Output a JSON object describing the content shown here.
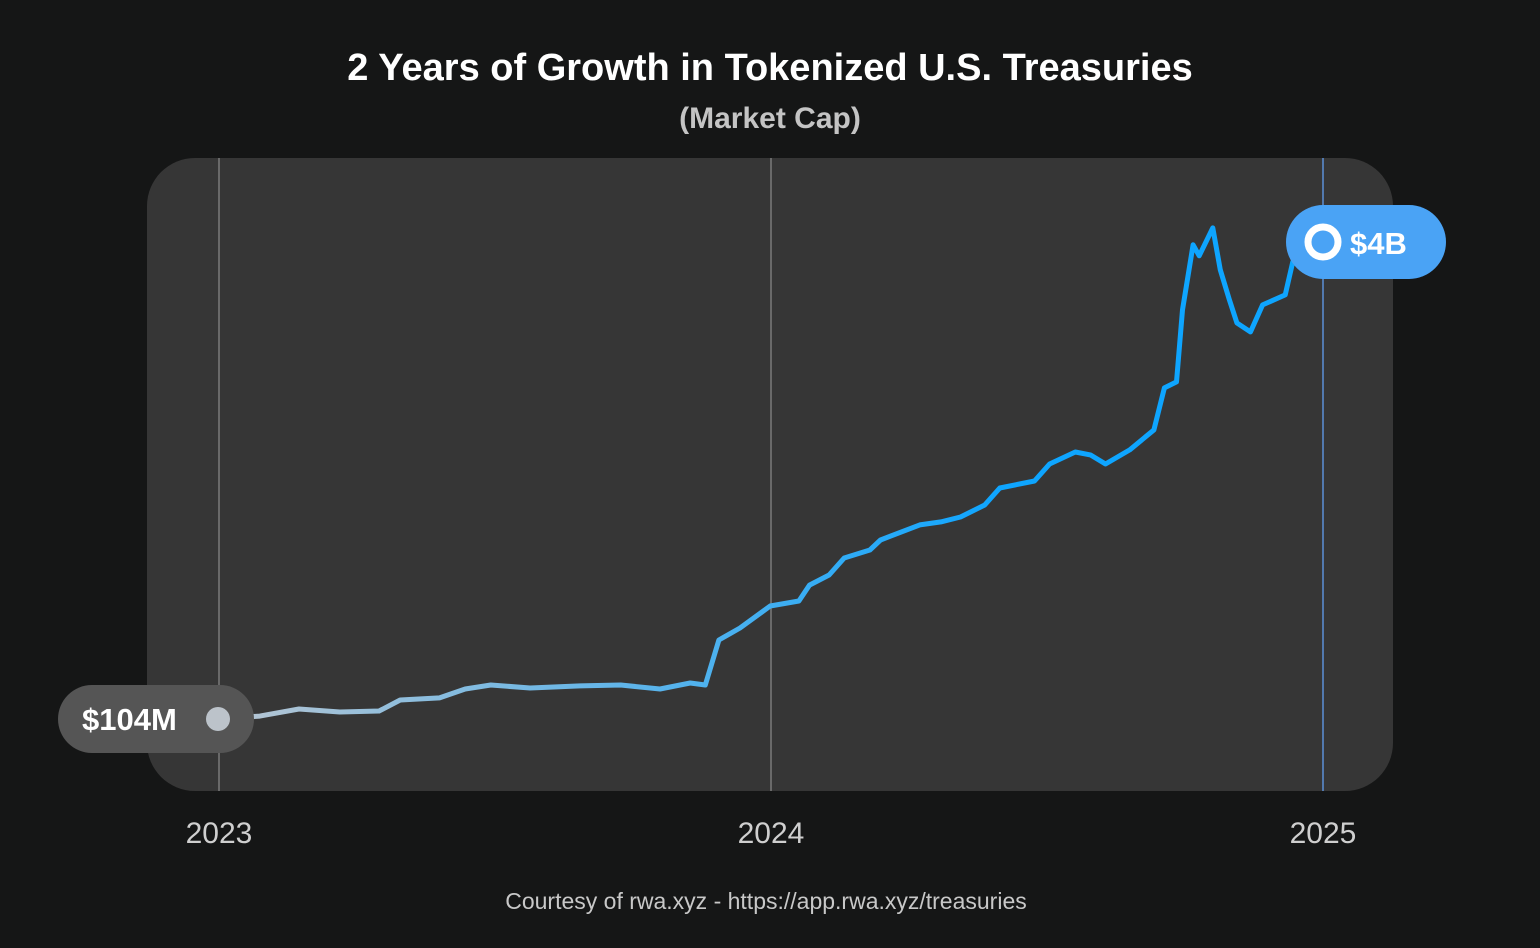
{
  "chart_data": {
    "type": "line",
    "title": "2 Years of Growth in Tokenized U.S. Treasuries",
    "subtitle": "(Market Cap)",
    "xlabel": "",
    "ylabel": "",
    "x_ticks": [
      "2023",
      "2024",
      "2025"
    ],
    "xlim": [
      "2023-01-01",
      "2025-01-01"
    ],
    "y_unit": "USD millions",
    "ylim": [
      0,
      4500
    ],
    "grid": "vertical lines at year ticks",
    "start_label": "$104M",
    "end_label": "$4B",
    "credit": "Courtesy of rwa.xyz -  https://app.rwa.xyz/treasuries",
    "colors": {
      "line_start": "#b9c6d2",
      "line_end": "#0ea5ff",
      "end_pill": "#4aa3f5",
      "start_pill": "#555555",
      "plot_bg": "#363636",
      "page_bg": "#151616"
    },
    "series": [
      {
        "x": [
          "2023-01-01",
          "2023-01-28",
          "2023-02-23",
          "2023-03-22",
          "2023-04-17",
          "2023-05-01",
          "2023-05-27",
          "2023-06-13",
          "2023-06-30",
          "2023-07-26",
          "2023-08-28",
          "2023-09-24",
          "2023-10-20",
          "2023-11-09",
          "2023-11-19",
          "2023-11-28",
          "2023-12-12",
          "2024-01-01",
          "2024-01-20",
          "2024-01-27",
          "2024-02-09",
          "2024-02-19",
          "2024-03-07",
          "2024-03-14",
          "2024-04-09",
          "2024-04-23",
          "2024-05-06",
          "2024-05-22",
          "2024-06-01",
          "2024-06-24",
          "2024-07-04",
          "2024-07-21",
          "2024-07-31",
          "2024-08-10",
          "2024-08-26",
          "2024-09-11",
          "2024-09-18",
          "2024-09-26",
          "2024-09-30",
          "2024-10-07",
          "2024-10-11",
          "2024-10-20",
          "2024-10-25",
          "2024-10-31",
          "2024-11-05",
          "2024-11-14",
          "2024-11-22",
          "2024-12-07",
          "2024-12-12",
          "2025-01-01"
        ],
        "y": [
          104,
          128,
          186,
          161,
          169,
          259,
          276,
          349,
          382,
          357,
          374,
          382,
          349,
          398,
          382,
          749,
          847,
          1027,
          1068,
          1198,
          1280,
          1419,
          1484,
          1566,
          1689,
          1714,
          1754,
          1852,
          1991,
          2048,
          2187,
          2285,
          2261,
          2187,
          2302,
          2465,
          2808,
          2857,
          3446,
          3977,
          3887,
          4115,
          3772,
          3527,
          3339,
          3266,
          3486,
          3568,
          3838,
          4000
        ]
      }
    ]
  }
}
